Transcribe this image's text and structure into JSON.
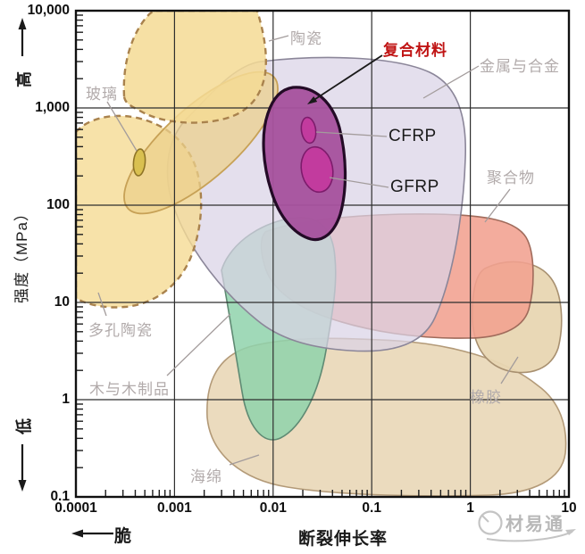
{
  "axes": {
    "y": {
      "title": "强度（MPa）",
      "high": "高",
      "low": "低",
      "ticks": [
        "10,000",
        "1,000",
        "100",
        "10",
        "1",
        "0.1"
      ]
    },
    "x": {
      "title": "断裂伸长率",
      "brittle": "脆",
      "ticks": [
        "0.0001",
        "0.001",
        "0.01",
        "0.1",
        "1",
        "10"
      ]
    }
  },
  "watermark": {
    "text": "材易通"
  },
  "colors": {
    "background": "#ffffff",
    "grid": "#2e2e2e",
    "axis_border": "#101010",
    "label_gray": "#b2abab",
    "composites_label_red": "#c01414",
    "ceramics_fill": "#f5db94",
    "ceramics_dash_stroke": "#a9824d",
    "glass_fill": "#d9c050",
    "metals_fill": "#d9d3e6",
    "composites_fill": "#a7529d",
    "frp_fill": "#c23b9e",
    "polymers_fill": "#f1a190",
    "wood_fill": "#8fd2ab",
    "rubber_fill": "#e8d6b2",
    "sponge_fill": "#ead9bb",
    "watermark_gray": "#8a8a8a"
  },
  "chart_data": {
    "type": "area",
    "title": "",
    "xlabel": "断裂伸长率",
    "ylabel": "强度（MPa）",
    "x_scale": "log",
    "y_scale": "log",
    "xlim": [
      0.0001,
      10
    ],
    "ylim": [
      0.1,
      10000
    ],
    "x_ticks": [
      0.0001,
      0.001,
      0.01,
      0.1,
      1,
      10
    ],
    "y_ticks": [
      10000,
      1000,
      100,
      10,
      1,
      0.1
    ],
    "grid": true,
    "legend": "labels-with-leader-lines",
    "regions": [
      {
        "label": "陶瓷",
        "x_range": [
          0.0003,
          0.009
        ],
        "y_range": [
          700,
          10000
        ],
        "border": "dashed",
        "color": "#f5db94"
      },
      {
        "label": "玻璃",
        "x_range": [
          0.0004,
          0.00055
        ],
        "y_range": [
          215,
          390
        ],
        "border": "solid",
        "color": "#d9c050"
      },
      {
        "label": "多孔陶瓷",
        "x_range": [
          0.0001,
          0.002
        ],
        "y_range": [
          9,
          860
        ],
        "border": "dashed",
        "color": "#f5db94"
      },
      {
        "label": "金属与合金",
        "x_range": [
          0.001,
          0.9
        ],
        "y_range": [
          3,
          3000
        ],
        "border": "solid",
        "color": "#d9d3e6"
      },
      {
        "label": "复合材料",
        "x_range": [
          0.008,
          0.06
        ],
        "y_range": [
          45,
          1500
        ],
        "border": "solid",
        "color": "#a7529d"
      },
      {
        "label": "CFRP",
        "x_range": [
          0.019,
          0.026
        ],
        "y_range": [
          440,
          790
        ],
        "border": "solid",
        "color": "#c23b9e"
      },
      {
        "label": "GFRP",
        "x_range": [
          0.019,
          0.04
        ],
        "y_range": [
          140,
          400
        ],
        "border": "solid",
        "color": "#c23b9e"
      },
      {
        "label": "聚合物",
        "x_range": [
          0.0075,
          4
        ],
        "y_range": [
          4.5,
          80
        ],
        "border": "solid",
        "color": "#f1a190"
      },
      {
        "label": "木与木制品",
        "x_range": [
          0.003,
          0.043
        ],
        "y_range": [
          0.4,
          80
        ],
        "border": "solid",
        "color": "#8fd2ab"
      },
      {
        "label": "橡胶",
        "x_range": [
          1,
          8.5
        ],
        "y_range": [
          1.8,
          27
        ],
        "border": "solid",
        "color": "#e8d6b2"
      },
      {
        "label": "海绵",
        "x_range": [
          0.002,
          10
        ],
        "y_range": [
          0.1,
          4.5
        ],
        "border": "solid",
        "color": "#ead9bb"
      }
    ]
  }
}
